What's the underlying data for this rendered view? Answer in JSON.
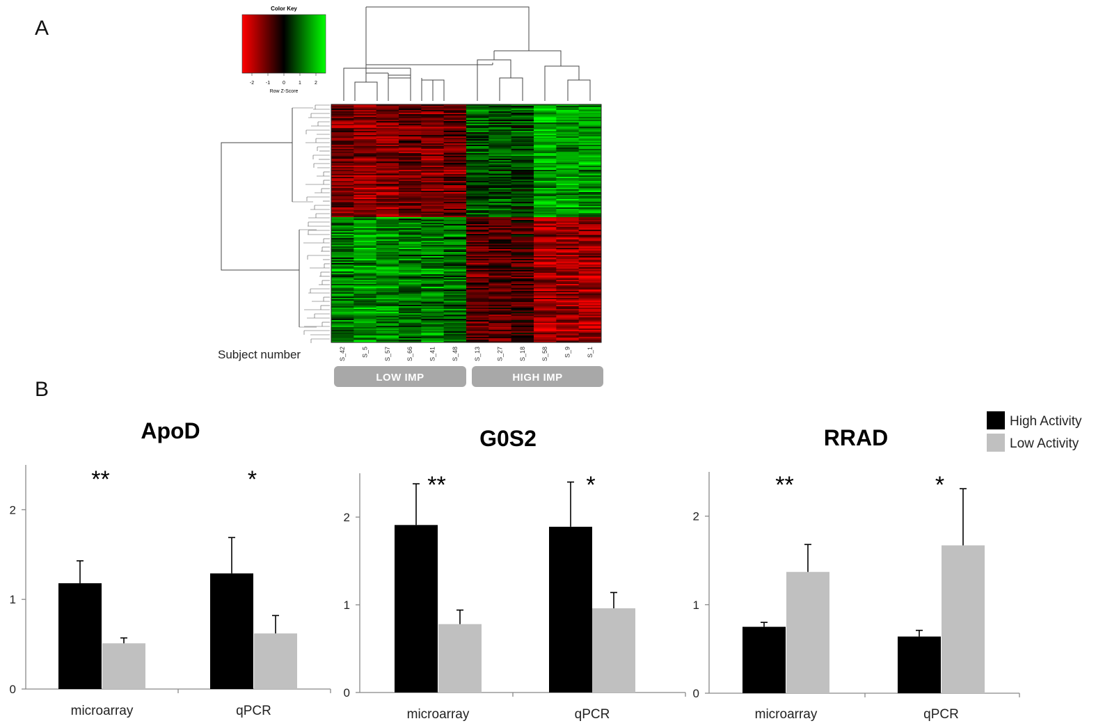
{
  "panel_labels": {
    "a": "A",
    "b": "B"
  },
  "heatmap": {
    "color_key_title": "Color Key",
    "color_key_xlabel": "Row Z-Score",
    "color_key_ticks": [
      "-2",
      "-1",
      "0",
      "1",
      "2"
    ],
    "y_axis_label": "Subject number",
    "samples": [
      "S_42",
      "S_5",
      "S_57",
      "S_66",
      "S_41",
      "S_48",
      "S_13",
      "S_27",
      "S_18",
      "S_58",
      "S_9",
      "S_1"
    ],
    "groups": [
      {
        "label": "LOW IMP",
        "color": "#a8a8a8"
      },
      {
        "label": "HIGH IMP",
        "color": "#a8a8a8"
      }
    ],
    "colors": {
      "low": "#ff0000",
      "mid": "#000000",
      "high": "#00ff00"
    }
  },
  "legend": {
    "items": [
      {
        "label": "High Activity",
        "color": "#000000"
      },
      {
        "label": "Low Activity",
        "color": "#c0c0c0"
      }
    ]
  },
  "chart_data": [
    {
      "type": "bar",
      "title": "ApoD",
      "categories": [
        "microarray",
        "qPCR"
      ],
      "ylim": [
        0,
        2.5
      ],
      "yticks": [
        "0",
        "1",
        "2"
      ],
      "series": [
        {
          "name": "High Activity",
          "values": [
            1.18,
            1.29
          ],
          "errors": [
            0.25,
            0.4
          ]
        },
        {
          "name": "Low Activity",
          "values": [
            0.51,
            0.62
          ],
          "errors": [
            0.06,
            0.2
          ]
        }
      ],
      "significance": [
        "**",
        "*"
      ]
    },
    {
      "type": "bar",
      "title": "G0S2",
      "categories": [
        "microarray",
        "qPCR"
      ],
      "ylim": [
        0,
        2.5
      ],
      "yticks": [
        "0",
        "1",
        "2"
      ],
      "series": [
        {
          "name": "High Activity",
          "values": [
            1.91,
            1.89
          ],
          "errors": [
            0.47,
            0.51
          ]
        },
        {
          "name": "Low Activity",
          "values": [
            0.78,
            0.96
          ],
          "errors": [
            0.16,
            0.18
          ]
        }
      ],
      "significance": [
        "**",
        "*"
      ]
    },
    {
      "type": "bar",
      "title": "RRAD",
      "categories": [
        "microarray",
        "qPCR"
      ],
      "ylim": [
        0,
        2.5
      ],
      "yticks": [
        "0",
        "1",
        "2"
      ],
      "series": [
        {
          "name": "High Activity",
          "values": [
            0.75,
            0.64
          ],
          "errors": [
            0.05,
            0.07
          ]
        },
        {
          "name": "Low Activity",
          "values": [
            1.37,
            1.67
          ],
          "errors": [
            0.31,
            0.64
          ]
        }
      ],
      "significance": [
        "**",
        "*"
      ]
    }
  ]
}
